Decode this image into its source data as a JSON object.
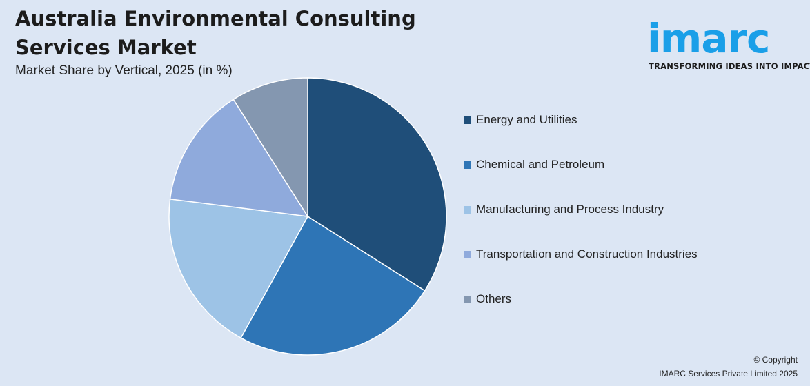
{
  "header": {
    "title": "Australia Environmental Consulting Services Market",
    "subtitle": "Market Share by Vertical, 2025 (in %)"
  },
  "logo": {
    "wordmark": "imarc",
    "tagline": "TRANSFORMING IDEAS INTO IMPACT",
    "color": "#1a9fe8"
  },
  "chart_data": {
    "type": "pie",
    "title": "Australia Environmental Consulting Services Market",
    "subtitle": "Market Share by Vertical, 2025 (in %)",
    "legend_position": "right",
    "slices": [
      {
        "label": "Energy and Utilities",
        "value": 34,
        "color": "#1f4e79"
      },
      {
        "label": "Chemical and Petroleum",
        "value": 24,
        "color": "#2e75b6"
      },
      {
        "label": "Manufacturing and Process Industry",
        "value": 19,
        "color": "#9dc3e6"
      },
      {
        "label": "Transportation and Construction Industries",
        "value": 14,
        "color": "#8faadc"
      },
      {
        "label": "Others",
        "value": 9,
        "color": "#8497b0"
      }
    ]
  },
  "footer": {
    "copyright_line1": "© Copyright",
    "copyright_line2": "IMARC Services Private Limited 2025"
  }
}
